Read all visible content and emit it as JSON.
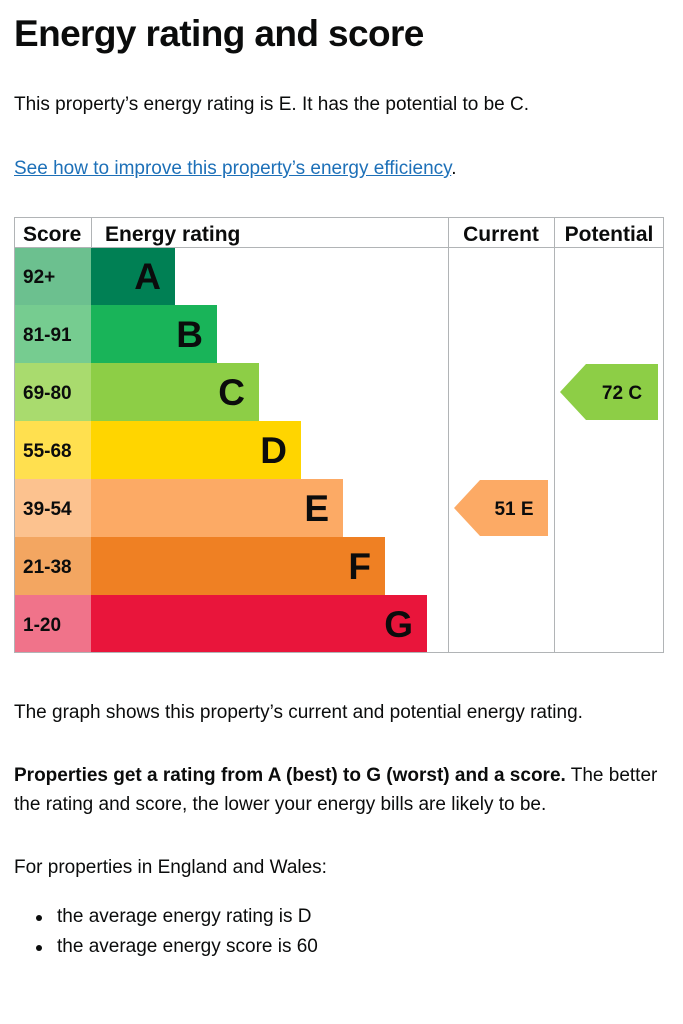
{
  "page": {
    "title": "Energy rating and score",
    "intro": "This property’s energy rating is E. It has the potential to be C.",
    "improve_link": "See how to improve this property’s energy efficiency",
    "improve_link_suffix": ".",
    "graph_note": "The graph shows this property’s current and potential energy rating.",
    "rating_bold": "Properties get a rating from A (best) to G (worst) and a score.",
    "rating_rest": " The better the rating and score, the lower your energy bills are likely to be.",
    "region_intro": "For properties in England and Wales:",
    "bullets": [
      "the average energy rating is D",
      "the average energy score is 60"
    ]
  },
  "chart_data": {
    "type": "table",
    "headers": {
      "score": "Score",
      "rating": "Energy rating",
      "current": "Current",
      "potential": "Potential"
    },
    "bands": [
      {
        "letter": "A",
        "range": "92+",
        "color": "#008054",
        "score_bg": "#6cc08f"
      },
      {
        "letter": "B",
        "range": "81-91",
        "color": "#19b459",
        "score_bg": "#76cc90"
      },
      {
        "letter": "C",
        "range": "69-80",
        "color": "#8dce46",
        "score_bg": "#a9db6e"
      },
      {
        "letter": "D",
        "range": "55-68",
        "color": "#ffd500",
        "score_bg": "#ffe04f"
      },
      {
        "letter": "E",
        "range": "39-54",
        "color": "#fcaa65",
        "score_bg": "#fcc28f"
      },
      {
        "letter": "F",
        "range": "21-38",
        "color": "#ef8023",
        "score_bg": "#f3a661"
      },
      {
        "letter": "G",
        "range": "1-20",
        "color": "#e9153b",
        "score_bg": "#f0738a"
      }
    ],
    "current": {
      "score": 51,
      "letter": "E",
      "label": "51 E",
      "color": "#fcaa65"
    },
    "potential": {
      "score": 72,
      "letter": "C",
      "label": "72 C",
      "color": "#8dce46"
    }
  }
}
